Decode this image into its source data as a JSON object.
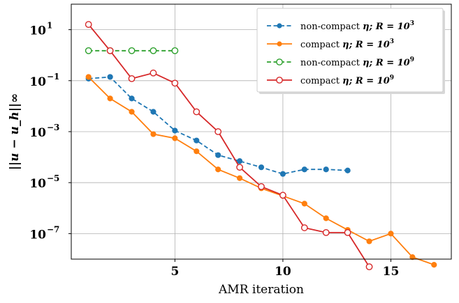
{
  "chart_data": {
    "type": "line",
    "xlabel": "AMR iteration",
    "ylabel": "||u − u_h||∞",
    "xlim": [
      0.2,
      17.8
    ],
    "ylim": [
      1e-08,
      100
    ],
    "yscale": "log",
    "grid": true,
    "legend_position": "top-right",
    "x_ticks": [
      {
        "value": 5,
        "label": "5"
      },
      {
        "value": 10,
        "label": "10"
      },
      {
        "value": 15,
        "label": "15"
      }
    ],
    "y_ticks": [
      {
        "value": 10,
        "base": "10",
        "exp": "1"
      },
      {
        "value": 0.1,
        "base": "10",
        "exp": "−1"
      },
      {
        "value": 0.001,
        "base": "10",
        "exp": "−3"
      },
      {
        "value": 1e-05,
        "base": "10",
        "exp": "−5"
      },
      {
        "value": 1e-07,
        "base": "10",
        "exp": "−7"
      }
    ],
    "series": [
      {
        "name": "non-compact η; R = 10³",
        "label_text": "non-compact ",
        "label_math": "η; R = 10",
        "label_exp": "3",
        "color": "#1f77b4",
        "linestyle": "dashed",
        "marker": "filled",
        "x": [
          1,
          2,
          3,
          4,
          5,
          6,
          7,
          8,
          9,
          10,
          11,
          12,
          13
        ],
        "y": [
          0.12,
          0.14,
          0.02,
          0.006,
          0.0011,
          0.00045,
          0.00012,
          7e-05,
          4e-05,
          2.2e-05,
          3.3e-05,
          3.3e-05,
          3e-05
        ]
      },
      {
        "name": "compact η; R = 10³",
        "label_text": "compact ",
        "label_math": "η; R = 10",
        "label_exp": "3",
        "color": "#ff7f0e",
        "linestyle": "solid",
        "marker": "filled",
        "x": [
          1,
          2,
          3,
          4,
          5,
          6,
          7,
          8,
          9,
          10,
          11,
          12,
          13,
          14,
          15,
          16,
          17
        ],
        "y": [
          0.14,
          0.02,
          0.006,
          0.0008,
          0.00055,
          0.00017,
          3.3e-05,
          1.5e-05,
          6e-06,
          3e-06,
          1.5e-06,
          4e-07,
          1.4e-07,
          5e-08,
          1e-07,
          1.2e-08,
          6e-09
        ]
      },
      {
        "name": "non-compact η; R = 10⁹",
        "label_text": "non-compact ",
        "label_math": "η; R = 10",
        "label_exp": "9",
        "color": "#2ca02c",
        "linestyle": "dashed",
        "marker": "open",
        "x": [
          1,
          2,
          3,
          4,
          5
        ],
        "y": [
          1.5,
          1.5,
          1.5,
          1.5,
          1.5
        ]
      },
      {
        "name": "compact η; R = 10⁹",
        "label_text": "compact ",
        "label_math": "η; R = 10",
        "label_exp": "9",
        "color": "#d62728",
        "linestyle": "solid",
        "marker": "open",
        "x": [
          1,
          2,
          3,
          4,
          5,
          6,
          7,
          8,
          9,
          10,
          11,
          12,
          13,
          14
        ],
        "y": [
          16,
          1.5,
          0.12,
          0.2,
          0.08,
          0.006,
          0.001,
          4e-05,
          7e-06,
          3.2e-06,
          1.7e-07,
          1.1e-07,
          1.1e-07,
          5e-09
        ]
      }
    ]
  }
}
